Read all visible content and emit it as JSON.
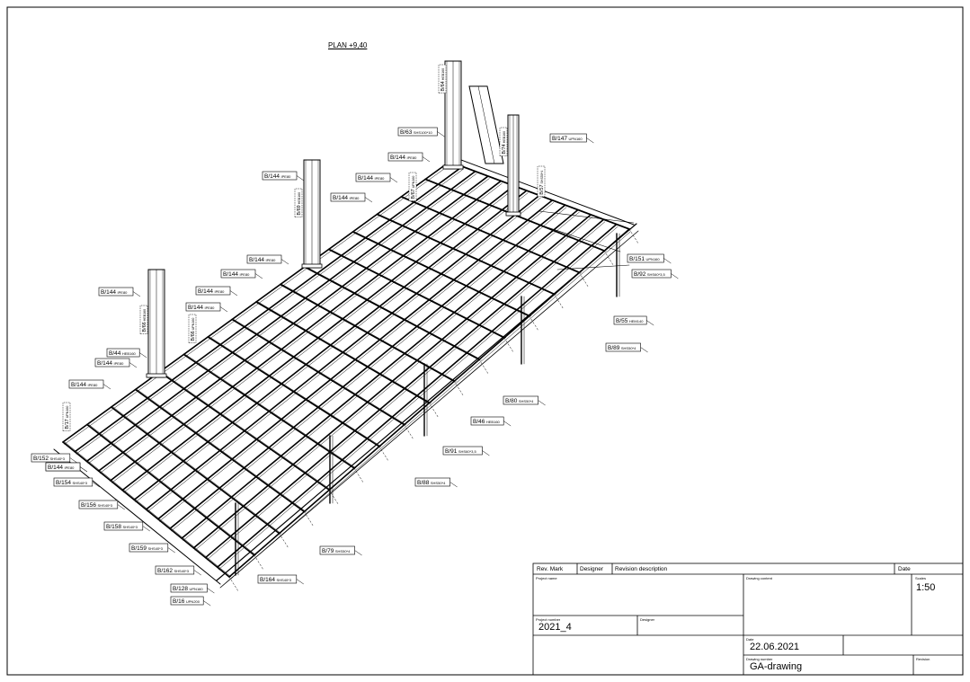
{
  "drawing": {
    "plan_title": "PLAN +9,40"
  },
  "labels": {
    "l1": "B/144 IPE80",
    "l2": "B/144 IPE80",
    "l3": "B/144 IPE80",
    "l4": "B/144 IPE80",
    "l5": "B/144 IPE80",
    "l6": "B/144 IPE80",
    "l7": "B/144 IPE80",
    "l8": "B/144 IPE80",
    "l9": "B/144 IPE80",
    "l10": "B/144 IPE80",
    "l11": "B/144 IPE80",
    "l12": "B/144 IPE80",
    "l13": "B/44 HEB160",
    "l14": "B/63 SHS100*10",
    "l15": "B/147 UPN160",
    "l16": "B/151 UPN160",
    "l17": "B/92 SHS60*3,5",
    "l18": "B/55 HEM140",
    "l19": "B/89 SHS50*4",
    "l20": "B/80 SHS50*4",
    "l21": "B/46 HEB160",
    "l22": "B/91 SHS60*3,5",
    "l23": "B/88 SHS50*4",
    "l24": "B/79 SHS50*4",
    "l25": "B/152 SHS40*3",
    "l26": "B/144 IPE80",
    "l27": "B/154 SHS40*3",
    "l28": "B/156 SHS40*3",
    "l29": "B/158 SHS40*3",
    "l30": "B/159 SHS40*3",
    "l31": "B/162 SHS40*3",
    "l32": "B/164 SHS40*3",
    "l33": "B/128 UPN160",
    "l34": "B/16 UPN200",
    "v1": "B/64 HEB160",
    "v2": "B/69 HEB160",
    "v3": "B/66 HEB160",
    "v4": "B/74 HEB160",
    "v5": "B/57 SHS50*4",
    "v6": "B/67 UPN160",
    "v7": "B/66 UPN160",
    "v8": "B/17 UPN160"
  },
  "title_block": {
    "rev_mark": "Rev. Mark",
    "designer_col": "Designer",
    "revision_description": "Revision description",
    "date_col": "Date",
    "project_name_label": "Project name",
    "drawing_content_label": "Drawing content",
    "scales_label": "Scales",
    "scale_value": "1:50",
    "project_number_label": "Project number",
    "project_number": "2021_4",
    "designer_label": "Designer",
    "date_label": "Date",
    "date_value": "22.06.2021",
    "drawing_number_label": "Drawing number",
    "drawing_number": "GA-drawing",
    "revision_label": "Revision"
  }
}
